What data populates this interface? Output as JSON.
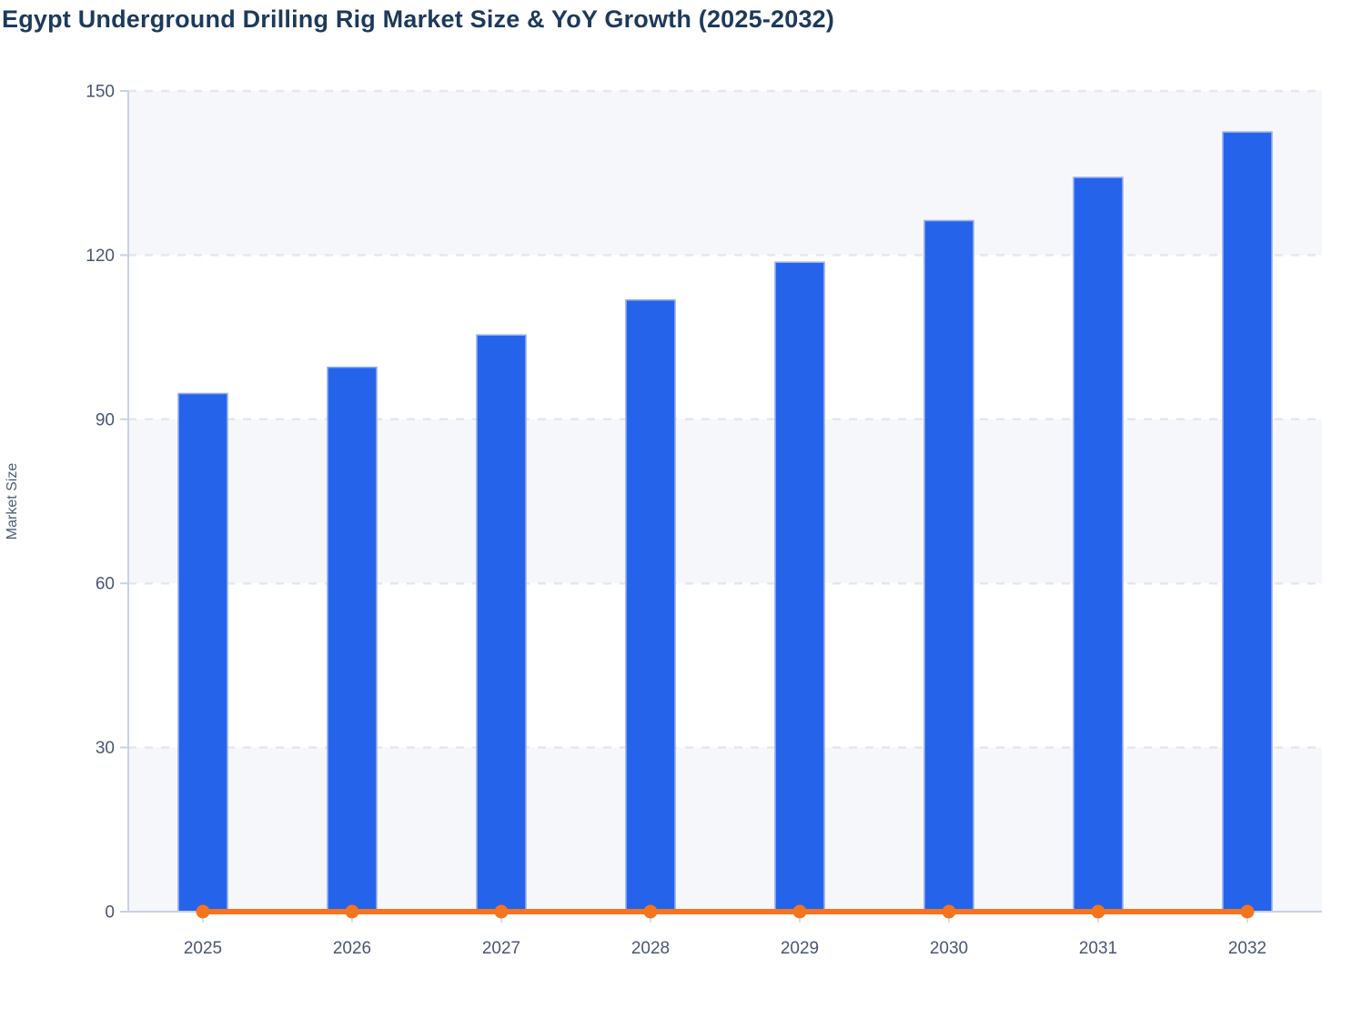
{
  "title": "Egypt Underground Drilling Rig Market Size & YoY Growth (2025-2032)",
  "colors": {
    "background": "#ffffff",
    "title": "#1d3a5c",
    "tick_label": "#4a5672",
    "axis_label": "#4e5c79",
    "band_fill": "#f6f7fa",
    "gridline": "#e5e7ed",
    "axis_line": "#c9d1e6",
    "sub_tick": "#d8ddec",
    "bar_fill": "#2563eb",
    "bar_stroke": "#96adf1",
    "line_color": "#f5741e"
  },
  "chart_data": {
    "type": "bar",
    "title": "Egypt Underground Drilling Rig Market Size & YoY Growth (2025-2032)",
    "xlabel": "",
    "ylabel": "Market Size",
    "ylim": [
      0,
      150
    ],
    "yticks": [
      0,
      30,
      60,
      90,
      120,
      150
    ],
    "ytick_labels": [
      "0",
      "30",
      "60",
      "90",
      "120",
      "150"
    ],
    "grid": "dashed horizontal gridlines at each y tick",
    "plot_bands": "alternating horizontal shaded bands at 0-30, 60-90, 120-150",
    "legend": "none",
    "categories": [
      "2025",
      "2026",
      "2027",
      "2028",
      "2029",
      "2030",
      "2031",
      "2032"
    ],
    "series": [
      {
        "name": "Market Size",
        "type": "bar",
        "color": "#2563eb",
        "values": [
          94.7,
          99.5,
          105.4,
          111.8,
          118.7,
          126.3,
          134.2,
          142.5
        ]
      },
      {
        "name": "YoY Growth",
        "type": "line",
        "color": "#f5741e",
        "marker": "circle",
        "values": [
          0,
          0,
          0,
          0,
          0,
          0,
          0,
          0
        ],
        "note": "line renders flat along the zero baseline of the Market Size axis"
      }
    ]
  }
}
